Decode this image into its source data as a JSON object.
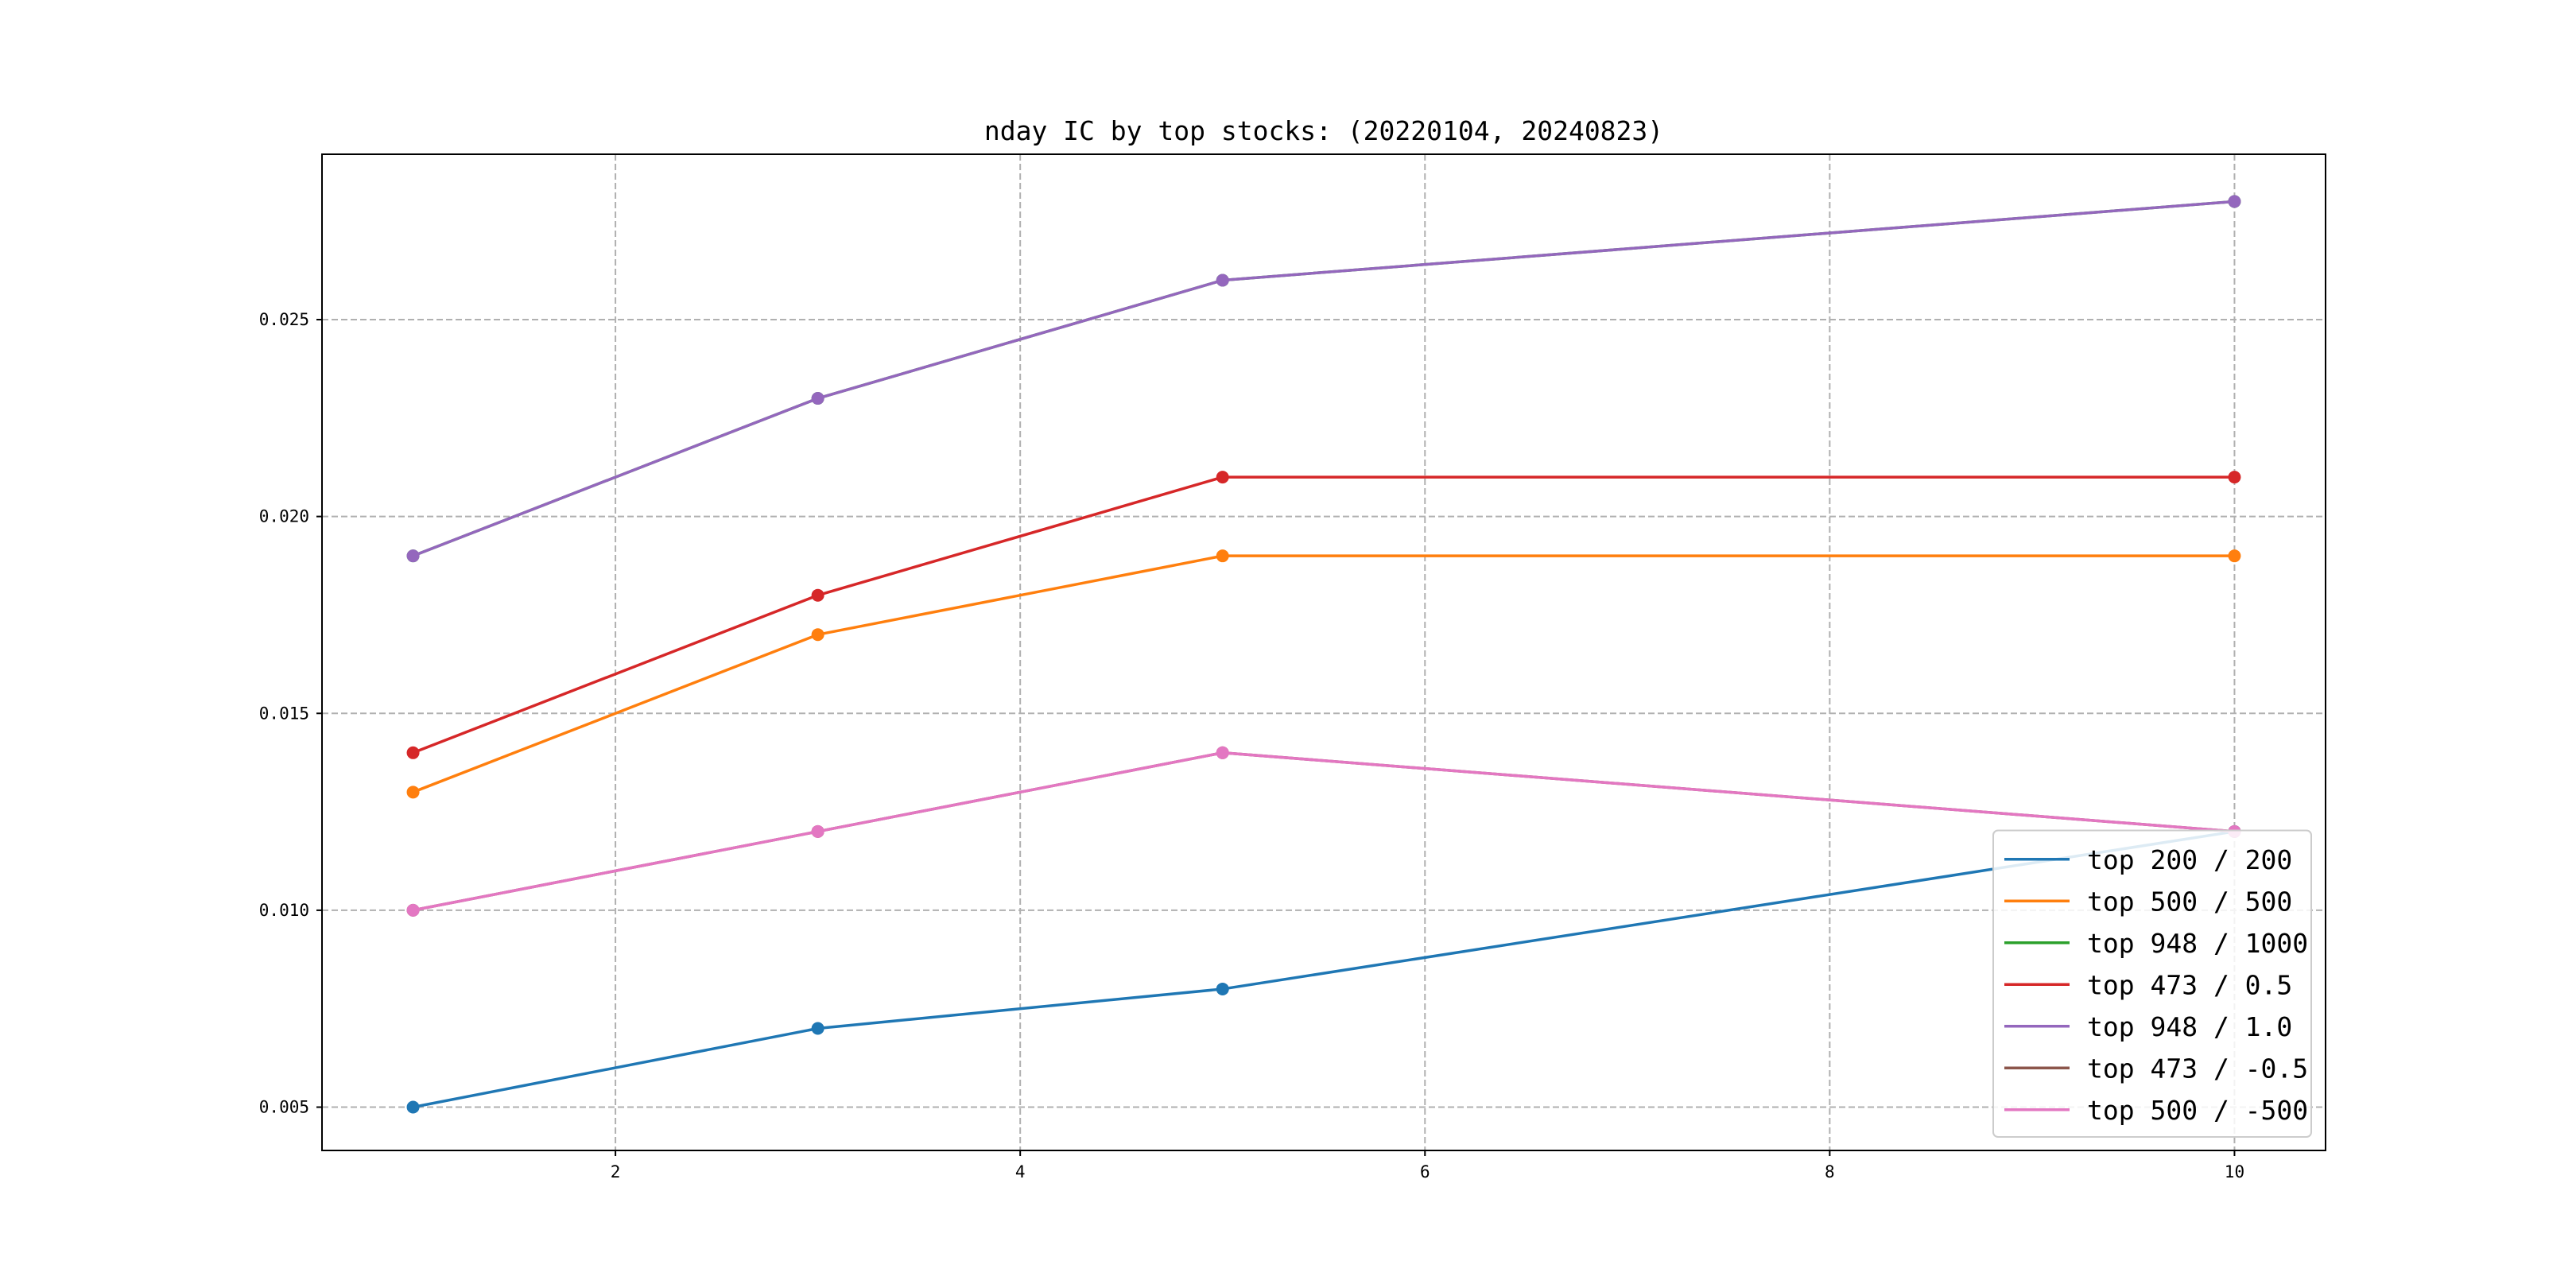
{
  "chart_data": {
    "type": "line",
    "title": "nday IC by top stocks: (20220104, 20240823)",
    "xlabel": "",
    "ylabel": "",
    "x": [
      1,
      3,
      5,
      10
    ],
    "xlim": [
      0.55,
      10.45
    ],
    "ylim": [
      0.0039,
      0.0292
    ],
    "xticks": [
      2,
      4,
      6,
      8,
      10
    ],
    "yticks": [
      0.005,
      0.01,
      0.015,
      0.02,
      0.025
    ],
    "xtick_labels": [
      "2",
      "4",
      "6",
      "8",
      "10"
    ],
    "ytick_labels": [
      "0.005",
      "0.010",
      "0.015",
      "0.020",
      "0.025"
    ],
    "grid": true,
    "legend_position": "lower-right",
    "series": [
      {
        "name": "top 200 / 200",
        "color": "#1f77b4",
        "values": [
          0.005,
          0.007,
          0.008,
          0.012
        ]
      },
      {
        "name": "top 500 / 500",
        "color": "#ff7f0e",
        "values": [
          0.013,
          0.017,
          0.019,
          0.019
        ]
      },
      {
        "name": "top 948 / 1000",
        "color": "#2ca02c",
        "values": [
          0.019,
          0.023,
          0.026,
          0.028
        ]
      },
      {
        "name": "top 473 / 0.5",
        "color": "#d62728",
        "values": [
          0.014,
          0.018,
          0.021,
          0.021
        ]
      },
      {
        "name": "top 948 / 1.0",
        "color": "#9467bd",
        "values": [
          0.019,
          0.023,
          0.026,
          0.028
        ]
      },
      {
        "name": "top 473 / -0.5",
        "color": "#8c564b",
        "values": [
          0.01,
          0.012,
          0.014,
          0.012
        ]
      },
      {
        "name": "top 500 / -500",
        "color": "#e377c2",
        "values": [
          0.01,
          0.012,
          0.014,
          0.012
        ]
      }
    ]
  }
}
